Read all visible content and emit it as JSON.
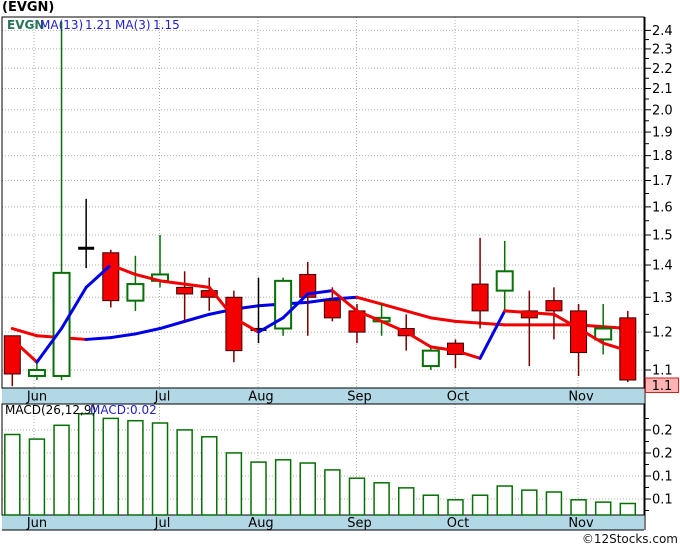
{
  "title": "(EVGN)",
  "legend": {
    "symbol": "EVGN",
    "ma13_label": "MA(13)",
    "ma13_value": "1.21",
    "ma3_label": "MA(3)",
    "ma3_value": "1.15"
  },
  "price_axis": {
    "tick_labels": [
      "2.4",
      "2.3",
      "2.2",
      "2.1",
      "2.0",
      "1.9",
      "1.8",
      "1.7",
      "1.6",
      "1.5",
      "1.4",
      "1.3",
      "1.2",
      "1.1"
    ],
    "current_price": "1.1"
  },
  "macd_panel": {
    "label": "MACD(26,12,9)",
    "value_label": "MACD:0.02",
    "axis_labels": [
      "0.2",
      "0.2",
      "0.1",
      "0.1"
    ]
  },
  "watermark": "©12Stocks.com",
  "colors": {
    "up_green": "#067005",
    "down_red": "#f40000",
    "down_red_dark": "#7a0000",
    "ma_rising_blue": "#0000e8",
    "ma_falling_red": "#f00000",
    "band_blue": "#b2d8e6",
    "grid_gray": "#b0b0b0",
    "badge_pink": "#ffb3b3",
    "badge_border": "#cc2222"
  },
  "chart_data": {
    "type": "candlestick",
    "symbol": "EVGN",
    "frequency": "weekly",
    "price_scale": "log",
    "x_labels": [
      "Jun",
      "Jul",
      "Aug",
      "Sep",
      "Oct",
      "Nov"
    ],
    "y_ticks": [
      2.4,
      2.3,
      2.2,
      2.1,
      2.0,
      1.9,
      1.8,
      1.7,
      1.6,
      1.5,
      1.4,
      1.3,
      1.2,
      1.1
    ],
    "ylim": [
      1.05,
      2.46
    ],
    "candles": [
      {
        "o": 1.19,
        "h": 1.19,
        "l": 1.06,
        "c": 1.09,
        "t": "red"
      },
      {
        "o": 1.085,
        "h": 1.12,
        "l": 1.075,
        "c": 1.1,
        "t": "green"
      },
      {
        "o": 1.085,
        "h": 2.45,
        "l": 1.075,
        "c": 1.375,
        "t": "green"
      },
      {
        "o": 1.46,
        "h": 1.63,
        "l": 1.39,
        "c": 1.45,
        "t": "black"
      },
      {
        "o": 1.44,
        "h": 1.45,
        "l": 1.27,
        "c": 1.29,
        "t": "red"
      },
      {
        "o": 1.29,
        "h": 1.43,
        "l": 1.26,
        "c": 1.34,
        "t": "green"
      },
      {
        "o": 1.35,
        "h": 1.5,
        "l": 1.33,
        "c": 1.37,
        "t": "green"
      },
      {
        "o": 1.33,
        "h": 1.38,
        "l": 1.23,
        "c": 1.31,
        "t": "red"
      },
      {
        "o": 1.32,
        "h": 1.36,
        "l": 1.26,
        "c": 1.3,
        "t": "red"
      },
      {
        "o": 1.3,
        "h": 1.32,
        "l": 1.12,
        "c": 1.15,
        "t": "red"
      },
      {
        "o": 1.21,
        "h": 1.36,
        "l": 1.17,
        "c": 1.205,
        "t": "black"
      },
      {
        "o": 1.21,
        "h": 1.36,
        "l": 1.19,
        "c": 1.35,
        "t": "green"
      },
      {
        "o": 1.37,
        "h": 1.41,
        "l": 1.19,
        "c": 1.3,
        "t": "red"
      },
      {
        "o": 1.29,
        "h": 1.33,
        "l": 1.23,
        "c": 1.24,
        "t": "red"
      },
      {
        "o": 1.26,
        "h": 1.28,
        "l": 1.17,
        "c": 1.2,
        "t": "red"
      },
      {
        "o": 1.23,
        "h": 1.28,
        "l": 1.19,
        "c": 1.24,
        "t": "green"
      },
      {
        "o": 1.21,
        "h": 1.25,
        "l": 1.15,
        "c": 1.19,
        "t": "red"
      },
      {
        "o": 1.11,
        "h": 1.16,
        "l": 1.1,
        "c": 1.15,
        "t": "green"
      },
      {
        "o": 1.17,
        "h": 1.18,
        "l": 1.105,
        "c": 1.14,
        "t": "red"
      },
      {
        "o": 1.34,
        "h": 1.49,
        "l": 1.21,
        "c": 1.26,
        "t": "red"
      },
      {
        "o": 1.32,
        "h": 1.48,
        "l": 1.26,
        "c": 1.38,
        "t": "green"
      },
      {
        "o": 1.26,
        "h": 1.32,
        "l": 1.11,
        "c": 1.24,
        "t": "red"
      },
      {
        "o": 1.29,
        "h": 1.33,
        "l": 1.18,
        "c": 1.26,
        "t": "red"
      },
      {
        "o": 1.26,
        "h": 1.28,
        "l": 1.085,
        "c": 1.145,
        "t": "red"
      },
      {
        "o": 1.18,
        "h": 1.28,
        "l": 1.14,
        "c": 1.21,
        "t": "green"
      },
      {
        "o": 1.24,
        "h": 1.26,
        "l": 1.07,
        "c": 1.075,
        "t": "red"
      }
    ],
    "ma3": [
      1.18,
      1.12,
      1.21,
      1.33,
      1.4,
      1.37,
      1.35,
      1.34,
      1.33,
      1.24,
      1.2,
      1.24,
      1.31,
      1.32,
      1.26,
      1.23,
      1.2,
      1.16,
      1.15,
      1.13,
      1.26,
      1.255,
      1.25,
      1.21,
      1.17,
      1.15
    ],
    "ma13": [
      1.21,
      1.19,
      1.185,
      1.18,
      1.185,
      1.195,
      1.21,
      1.23,
      1.25,
      1.265,
      1.275,
      1.28,
      1.285,
      1.295,
      1.3,
      1.28,
      1.26,
      1.24,
      1.23,
      1.225,
      1.22,
      1.22,
      1.22,
      1.22,
      1.215,
      1.21
    ],
    "macd": {
      "params": "26,12,9",
      "current": 0.02,
      "values": [
        0.175,
        0.165,
        0.195,
        0.22,
        0.21,
        0.205,
        0.2,
        0.185,
        0.17,
        0.135,
        0.115,
        0.12,
        0.113,
        0.098,
        0.08,
        0.07,
        0.059,
        0.043,
        0.033,
        0.043,
        0.063,
        0.054,
        0.05,
        0.033,
        0.028,
        0.025
      ]
    }
  }
}
